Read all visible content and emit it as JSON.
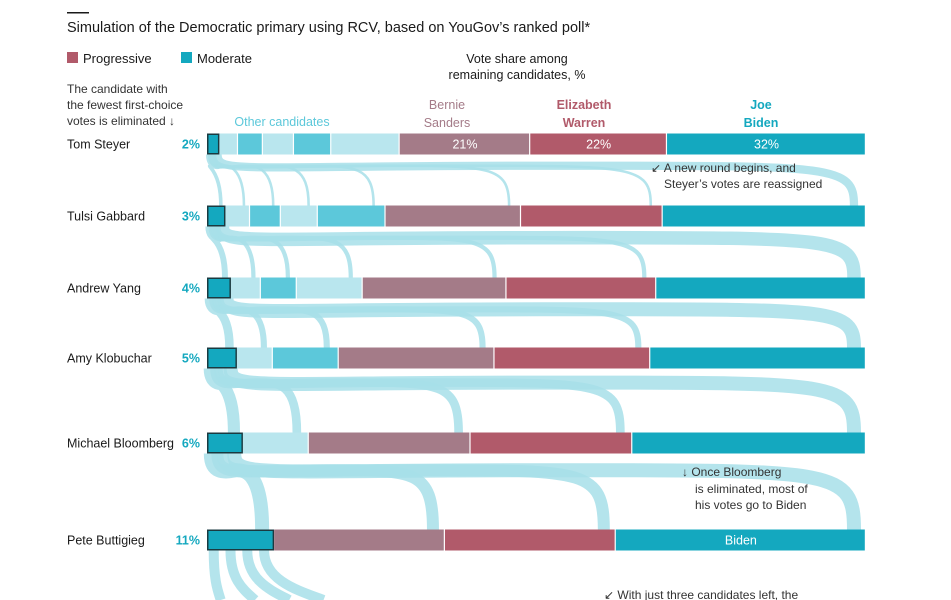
{
  "title": "Simulation of the Democratic primary using RCV, based on YouGov’s ranked poll*",
  "legend": [
    {
      "label": "Progressive",
      "color": "#b15a6a"
    },
    {
      "label": "Moderate",
      "color": "#14a8bf"
    }
  ],
  "colors": {
    "progressive_dark": "#b15a6a",
    "progressive_light": "#a47b88",
    "moderate": "#14a8bf",
    "other_shades": [
      "#b9e6ee",
      "#5cc8da"
    ],
    "flow": "#a7dfe9",
    "text_moderate": "#14a8bf",
    "text_dark": "#1a1a1a"
  },
  "header": {
    "vote_share_label": [
      "Vote share among",
      "remaining candidates, %"
    ],
    "eliminated_note": [
      "The candidate with",
      "the fewest first-choice",
      "votes is eliminated ↓"
    ],
    "other_candidates_label": "Other candidates",
    "col_bernie": [
      "Bernie",
      "Sanders"
    ],
    "col_warren": [
      "Elizabeth",
      "Warren"
    ],
    "col_biden": [
      "Joe",
      "Biden"
    ]
  },
  "annotations": {
    "new_round": [
      "↙ A new round begins, and",
      "Steyer’s votes are reassigned"
    ],
    "bloomberg": [
      "↓ Once Bloomberg",
      "is eliminated, most of",
      "his votes go to Biden"
    ],
    "three_left": "↙ With just three candidates left, the"
  },
  "chart_data": {
    "type": "bar",
    "stacked": true,
    "orientation": "horizontal",
    "title": "Simulation of the Democratic primary using RCV, based on YouGov’s ranked poll*",
    "units": "%",
    "rounds": [
      {
        "eliminated": "Tom Steyer",
        "eliminated_share": "2%",
        "segments": [
          2,
          3,
          4,
          5,
          6,
          11,
          21,
          22,
          32
        ],
        "labels": {
          "6": "21%",
          "7": "22%",
          "8": "32%"
        }
      },
      {
        "eliminated": "Tulsi Gabbard",
        "eliminated_share": "3%",
        "segments": [
          3,
          4,
          5,
          6,
          11,
          22,
          23,
          33
        ],
        "labels": {}
      },
      {
        "eliminated": "Andrew Yang",
        "eliminated_share": "4%",
        "segments": [
          4,
          5,
          6,
          11,
          24,
          25,
          35
        ],
        "labels": {}
      },
      {
        "eliminated": "Amy Klobuchar",
        "eliminated_share": "5%",
        "segments": [
          5,
          6,
          11,
          26,
          26,
          36
        ],
        "labels": {}
      },
      {
        "eliminated": "Michael Bloomberg",
        "eliminated_share": "6%",
        "segments": [
          6,
          11,
          27,
          27,
          39
        ],
        "labels": {}
      },
      {
        "eliminated": "Pete Buttigieg",
        "eliminated_share": "11%",
        "segments": [
          11,
          28,
          28,
          41
        ],
        "labels": {
          "3": "Biden"
        }
      }
    ]
  }
}
